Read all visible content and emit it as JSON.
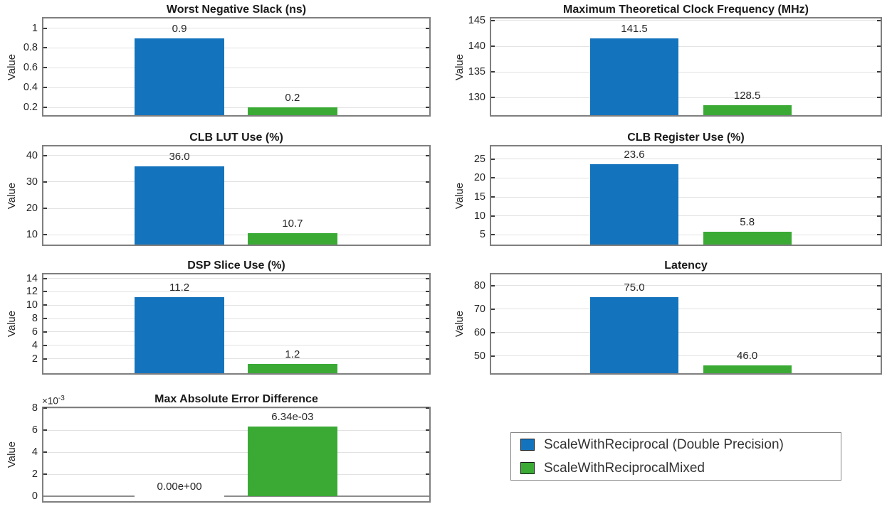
{
  "figure": {
    "background": "#ffffff"
  },
  "colors": {
    "series1": "#1373bd",
    "series2": "#3aaa35",
    "grid": "#e2e2e2",
    "axis_border": "#7f7f7f",
    "tick": "#3a3a3a",
    "text": "#262626",
    "baseline": "#8c8c8c"
  },
  "legend": {
    "items": [
      {
        "label": "ScaleWithReciprocal (Double Precision)",
        "color": "#1373bd"
      },
      {
        "label": "ScaleWithReciprocalMixed",
        "color": "#3aaa35"
      }
    ]
  },
  "chart_data": [
    {
      "type": "bar",
      "title": "Worst Negative Slack (ns)",
      "ylabel": "Value",
      "ylim": [
        0.123,
        1.097
      ],
      "grid": true,
      "yticks": [
        {
          "v": 0.2,
          "label": "0.2"
        },
        {
          "v": 0.4,
          "label": "0.4"
        },
        {
          "v": 0.6,
          "label": "0.6"
        },
        {
          "v": 0.8,
          "label": "0.8"
        },
        {
          "v": 1,
          "label": "1"
        }
      ],
      "series": [
        {
          "name": "ScaleWithReciprocal (Double Precision)",
          "value": 0.9,
          "label": "0.9"
        },
        {
          "name": "ScaleWithReciprocalMixed",
          "value": 0.2,
          "label": "0.2"
        }
      ]
    },
    {
      "type": "bar",
      "title": "Maximum Theoretical Clock Frequency (MHz)",
      "ylabel": "Value",
      "ylim": [
        126.6,
        145.4
      ],
      "grid": true,
      "yticks": [
        {
          "v": 130,
          "label": "130"
        },
        {
          "v": 135,
          "label": "135"
        },
        {
          "v": 140,
          "label": "140"
        },
        {
          "v": 145,
          "label": "145"
        }
      ],
      "series": [
        {
          "name": "ScaleWithReciprocal (Double Precision)",
          "value": 141.5,
          "label": "141.5"
        },
        {
          "name": "ScaleWithReciprocalMixed",
          "value": 128.5,
          "label": "128.5"
        }
      ]
    },
    {
      "type": "bar",
      "title": "CLB LUT Use (%)",
      "ylabel": "Value",
      "ylim": [
        6.35,
        43.4
      ],
      "grid": true,
      "yticks": [
        {
          "v": 10,
          "label": "10"
        },
        {
          "v": 20,
          "label": "20"
        },
        {
          "v": 30,
          "label": "30"
        },
        {
          "v": 40,
          "label": "40"
        }
      ],
      "series": [
        {
          "name": "ScaleWithReciprocal (Double Precision)",
          "value": 36.0,
          "label": "36.0"
        },
        {
          "name": "ScaleWithReciprocalMixed",
          "value": 10.7,
          "label": "10.7"
        }
      ]
    },
    {
      "type": "bar",
      "title": "CLB Register Use (%)",
      "ylabel": "Value",
      "ylim": [
        2.45,
        28.3
      ],
      "grid": true,
      "yticks": [
        {
          "v": 5,
          "label": "5"
        },
        {
          "v": 10,
          "label": "10"
        },
        {
          "v": 15,
          "label": "15"
        },
        {
          "v": 20,
          "label": "20"
        },
        {
          "v": 25,
          "label": "25"
        }
      ],
      "series": [
        {
          "name": "ScaleWithReciprocal (Double Precision)",
          "value": 23.6,
          "label": "23.6"
        },
        {
          "name": "ScaleWithReciprocalMixed",
          "value": 5.8,
          "label": "5.8"
        }
      ]
    },
    {
      "type": "bar",
      "title": "DSP Slice Use (%)",
      "ylabel": "Value",
      "ylim": [
        -0.17,
        14.6
      ],
      "grid": true,
      "yticks": [
        {
          "v": 2,
          "label": "2"
        },
        {
          "v": 4,
          "label": "4"
        },
        {
          "v": 6,
          "label": "6"
        },
        {
          "v": 8,
          "label": "8"
        },
        {
          "v": 10,
          "label": "10"
        },
        {
          "v": 12,
          "label": "12"
        },
        {
          "v": 14,
          "label": "14"
        }
      ],
      "series": [
        {
          "name": "ScaleWithReciprocal (Double Precision)",
          "value": 11.2,
          "label": "11.2"
        },
        {
          "name": "ScaleWithReciprocalMixed",
          "value": 1.2,
          "label": "1.2"
        }
      ]
    },
    {
      "type": "bar",
      "title": "Latency",
      "ylabel": "Value",
      "ylim": [
        42.6,
        84.7
      ],
      "grid": true,
      "yticks": [
        {
          "v": 50,
          "label": "50"
        },
        {
          "v": 60,
          "label": "60"
        },
        {
          "v": 70,
          "label": "70"
        },
        {
          "v": 80,
          "label": "80"
        }
      ],
      "series": [
        {
          "name": "ScaleWithReciprocal (Double Precision)",
          "value": 75.0,
          "label": "75.0"
        },
        {
          "name": "ScaleWithReciprocalMixed",
          "value": 46.0,
          "label": "46.0"
        }
      ]
    },
    {
      "type": "bar",
      "title": "Max Absolute Error Difference",
      "ylabel": "Value",
      "ylim": [
        -0.00044,
        0.008
      ],
      "grid": true,
      "exponent_label": {
        "prefix": "×10",
        "exp": "-3"
      },
      "baseline_at_zero": true,
      "yticks": [
        {
          "v": 0,
          "label": "0"
        },
        {
          "v": 0.002,
          "label": "2"
        },
        {
          "v": 0.004,
          "label": "4"
        },
        {
          "v": 0.006,
          "label": "6"
        },
        {
          "v": 0.008,
          "label": "8"
        }
      ],
      "series": [
        {
          "name": "ScaleWithReciprocal (Double Precision)",
          "value": 0,
          "label": "0.00e+00"
        },
        {
          "name": "ScaleWithReciprocalMixed",
          "value": 0.00634,
          "label": "6.34e-03"
        }
      ]
    }
  ]
}
